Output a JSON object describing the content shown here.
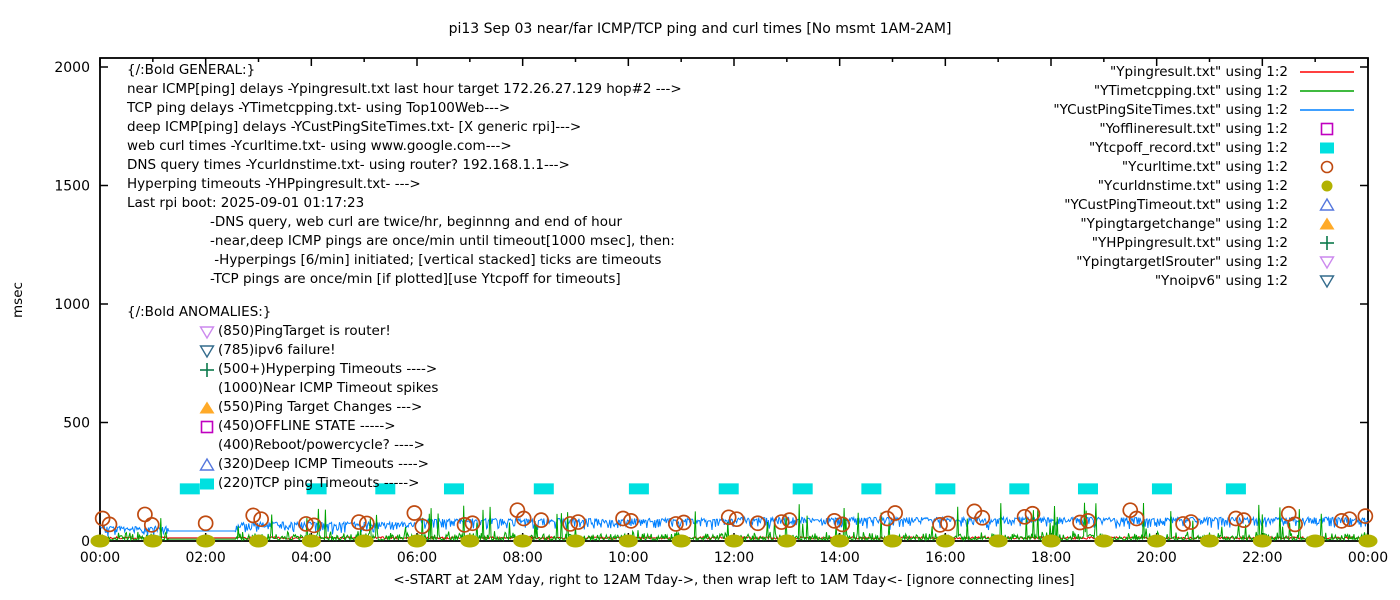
{
  "title": "pi13 Sep 03  near/far ICMP/TCP ping and curl times [No msmt 1AM-2AM]",
  "xlabel": "<-START at 2AM Yday, right to 12AM Tday->, then wrap left to 1AM Tday<- [ignore connecting lines]",
  "ylabel": "msec",
  "annotations": {
    "general_lines": [
      {
        "text": "{/:Bold GENERAL:}",
        "indent": false
      },
      {
        "text": "near ICMP[ping] delays -Ypingresult.txt last hour target 172.26.27.129 hop#2 --->",
        "indent": false
      },
      {
        "text": "TCP ping delays -YTimetcpping.txt- using Top100Web--->",
        "indent": false
      },
      {
        "text": "deep ICMP[ping] delays -YCustPingSiteTimes.txt- [X generic rpi]--->",
        "indent": false
      },
      {
        "text": "web curl times -Ycurltime.txt- using www.google.com--->",
        "indent": false
      },
      {
        "text": "DNS query times -Ycurldnstime.txt- using router? 192.168.1.1--->",
        "indent": false
      },
      {
        "text": "Hyperping timeouts -YHPpingresult.txt- --->",
        "indent": false
      },
      {
        "text": "Last rpi boot: 2025-09-01 01:17:23",
        "indent": false
      },
      {
        "text": "-DNS query, web curl are twice/hr, beginnng and end of hour",
        "indent": true
      },
      {
        "text": "-near,deep ICMP pings are once/min until timeout[1000 msec], then:",
        "indent": true
      },
      {
        "text": " -Hyperpings [6/min] initiated; [vertical stacked] ticks are timeouts",
        "indent": true
      },
      {
        "text": "-TCP pings are once/min [if plotted][use Ytcpoff for timeouts]",
        "indent": true
      }
    ],
    "anomalies_header": "{/:Bold ANOMALIES:}",
    "anomalies": [
      {
        "text": "(850)PingTarget is router!",
        "marker": "triangle-down-open",
        "color": "#cc88ee"
      },
      {
        "text": "(785)ipv6 failure!",
        "marker": "triangle-down-open",
        "color": "#336b8c"
      },
      {
        "text": "(500+)Hyperping Timeouts ---->",
        "marker": "plus",
        "color": "#0b7a4b"
      },
      {
        "text": "(1000)Near ICMP Timeout spikes",
        "marker": "none",
        "color": "#000000"
      },
      {
        "text": "(550)Ping Target Changes --->",
        "marker": "triangle-up-filled",
        "color": "#ffaa28"
      },
      {
        "text": "(450)OFFLINE STATE ----->",
        "marker": "square-open",
        "color": "#c000c0"
      },
      {
        "text": "(400)Reboot/powercycle? ---->",
        "marker": "none",
        "color": "#000000"
      },
      {
        "text": "(320)Deep ICMP Timeouts ---->",
        "marker": "triangle-up-open",
        "color": "#5577dd"
      },
      {
        "text": "(220)TCP ping Timeouts ----->",
        "marker": "square-filled",
        "color": "#00e0e0"
      }
    ]
  },
  "legend": [
    {
      "label": "\"Ypingresult.txt\" using 1:2",
      "marker": "line",
      "color": "#ff0000"
    },
    {
      "label": "\"YTimetcpping.txt\" using 1:2",
      "marker": "line",
      "color": "#00a400"
    },
    {
      "label": "\"YCustPingSiteTimes.txt\" using 1:2",
      "marker": "line",
      "color": "#0080ff"
    },
    {
      "label": "\"Yofflineresult.txt\" using 1:2",
      "marker": "square-open",
      "color": "#c000c0"
    },
    {
      "label": "\"Ytcpoff_record.txt\" using 1:2",
      "marker": "square-filled",
      "color": "#00e0e0"
    },
    {
      "label": "\"Ycurltime.txt\" using 1:2",
      "marker": "circle-open",
      "color": "#bf4a10"
    },
    {
      "label": "\"Ycurldnstime.txt\" using 1:2",
      "marker": "circle-filled",
      "color": "#b2b200"
    },
    {
      "label": "\"YCustPingTimeout.txt\" using 1:2",
      "marker": "triangle-up-open",
      "color": "#5577dd"
    },
    {
      "label": "\"Ypingtargetchange\" using 1:2",
      "marker": "triangle-up-filled",
      "color": "#ffaa28"
    },
    {
      "label": "\"YHPpingresult.txt\" using 1:2",
      "marker": "plus",
      "color": "#0b7a4b"
    },
    {
      "label": "\"YpingtargetISrouter\" using 1:2",
      "marker": "triangle-down-open",
      "color": "#cc88ee"
    },
    {
      "label": "\"Ynoipv6\" using 1:2",
      "marker": "triangle-down-open",
      "color": "#336b8c"
    }
  ],
  "chart_data": {
    "type": "line",
    "title": "pi13 Sep 03  near/far ICMP/TCP ping and curl times [No msmt 1AM-2AM]",
    "xlabel": "<-START at 2AM Yday, right to 12AM Tday->, then wrap left to 1AM Tday<- [ignore connecting lines]",
    "ylabel": "msec",
    "grid": false,
    "legend_position": "top-right",
    "x_axis": {
      "range_hours": [
        0,
        24
      ],
      "major_tick_every_hours": 2,
      "minor_tick_every_hours": 1,
      "tick_labels": [
        "00:00",
        "02:00",
        "04:00",
        "06:00",
        "08:00",
        "10:00",
        "12:00",
        "14:00",
        "16:00",
        "18:00",
        "20:00",
        "22:00",
        "00:00"
      ]
    },
    "y_axis": {
      "unit": "msec",
      "ticks": [
        0,
        500,
        1000,
        1500,
        2000
      ],
      "range": [
        0,
        2040
      ]
    },
    "quiet_window_hours": [
      1.3,
      2.55
    ],
    "quiet_note": "No msmt 1AM-2AM",
    "series": [
      {
        "name": "Ypingresult.txt",
        "desc": "near ICMP ping delays",
        "style": "line",
        "gen": "flat",
        "color": "#e60000",
        "baseline_msec": 13,
        "noise_msec": 5,
        "quiet_msec": 13,
        "seed": 7
      },
      {
        "name": "YCustPingSiteTimes.txt",
        "desc": "deep ICMP ping delays",
        "style": "line",
        "gen": "band",
        "color": "#0080ff",
        "envelope": [
          [
            1.3,
            62
          ],
          [
            2.55,
            42
          ],
          [
            6,
            80
          ],
          [
            12,
            95
          ],
          [
            24.1,
            100
          ]
        ],
        "depth_msec": 55,
        "quiet_msec": 42,
        "seed": 29
      },
      {
        "name": "YTimetcpping.txt",
        "desc": "TCP ping delays",
        "style": "line",
        "gen": "grass",
        "color": "#00a400",
        "baseline_msec": 4,
        "noise_msec": 38,
        "spike_prob": 0.06,
        "spike_max_msec": 150,
        "quiet_msec": 8,
        "seed": 13
      },
      {
        "name": "Ytcpoff_record.txt",
        "desc": "TCP ping timeouts",
        "style": "points",
        "marker": "square-filled",
        "color": "#00e0e0",
        "msec": 220,
        "hours": [
          1.7,
          4.1,
          5.4,
          6.7,
          8.4,
          10.2,
          11.9,
          13.3,
          14.6,
          16.0,
          17.4,
          18.7,
          20.1,
          21.5
        ]
      },
      {
        "name": "Ycurltime.txt",
        "desc": "web curl times (twice/hr)",
        "style": "points",
        "marker": "circle-open",
        "color": "#bf4a10",
        "points": [
          [
            0.05,
            95
          ],
          [
            0.18,
            70
          ],
          [
            0.85,
            112
          ],
          [
            0.98,
            68
          ],
          [
            2.0,
            75
          ],
          [
            2.9,
            108
          ],
          [
            3.05,
            92
          ],
          [
            3.9,
            72
          ],
          [
            4.05,
            66
          ],
          [
            4.9,
            80
          ],
          [
            5.05,
            74
          ],
          [
            5.95,
            118
          ],
          [
            6.1,
            62
          ],
          [
            6.9,
            68
          ],
          [
            7.05,
            75
          ],
          [
            7.9,
            130
          ],
          [
            8.02,
            95
          ],
          [
            8.35,
            88
          ],
          [
            8.9,
            72
          ],
          [
            9.05,
            80
          ],
          [
            9.9,
            95
          ],
          [
            10.05,
            85
          ],
          [
            10.9,
            72
          ],
          [
            11.05,
            78
          ],
          [
            11.9,
            100
          ],
          [
            12.05,
            92
          ],
          [
            12.45,
            75
          ],
          [
            12.9,
            80
          ],
          [
            13.05,
            88
          ],
          [
            13.9,
            85
          ],
          [
            14.05,
            70
          ],
          [
            14.9,
            95
          ],
          [
            15.05,
            118
          ],
          [
            15.9,
            68
          ],
          [
            16.05,
            74
          ],
          [
            16.55,
            125
          ],
          [
            16.7,
            98
          ],
          [
            17.5,
            102
          ],
          [
            17.65,
            115
          ],
          [
            18.55,
            78
          ],
          [
            18.7,
            85
          ],
          [
            19.5,
            130
          ],
          [
            19.62,
            95
          ],
          [
            20.5,
            72
          ],
          [
            20.65,
            80
          ],
          [
            21.5,
            95
          ],
          [
            21.65,
            88
          ],
          [
            22.5,
            115
          ],
          [
            22.62,
            70
          ],
          [
            23.5,
            85
          ],
          [
            23.65,
            92
          ],
          [
            23.95,
            105
          ]
        ]
      },
      {
        "name": "Ycurldnstime.txt",
        "desc": "DNS query times (twice/hr)",
        "style": "points",
        "marker": "circle-filled",
        "color": "#b2b200",
        "msec": 0,
        "hours": [
          0,
          1,
          2,
          3,
          4,
          5,
          6,
          7,
          8,
          9,
          10,
          11,
          12,
          13,
          14,
          15,
          16,
          17,
          18,
          19,
          20,
          21,
          22,
          23,
          24
        ]
      },
      {
        "name": "Yofflineresult.txt",
        "desc": "offline state",
        "style": "points",
        "marker": "square-open",
        "color": "#c000c0",
        "msec": 450,
        "hours": []
      },
      {
        "name": "YCustPingTimeout.txt",
        "desc": "deep ICMP timeouts",
        "style": "points",
        "marker": "triangle-up-open",
        "color": "#5577dd",
        "msec": 320,
        "hours": []
      },
      {
        "name": "Ypingtargetchange",
        "desc": "ping target changes",
        "style": "points",
        "marker": "triangle-up-filled",
        "color": "#ffaa28",
        "msec": 550,
        "hours": []
      },
      {
        "name": "YHPpingresult.txt",
        "desc": "hyperping timeouts",
        "style": "points",
        "marker": "plus",
        "color": "#0b7a4b",
        "msec": 500,
        "hours": []
      },
      {
        "name": "YpingtargetISrouter",
        "desc": "ping target is router",
        "style": "points",
        "marker": "triangle-down-open",
        "color": "#cc88ee",
        "msec": 850,
        "hours": []
      },
      {
        "name": "Ynoipv6",
        "desc": "ipv6 failure",
        "style": "points",
        "marker": "triangle-down-open",
        "color": "#336b8c",
        "msec": 785,
        "hours": []
      }
    ]
  }
}
